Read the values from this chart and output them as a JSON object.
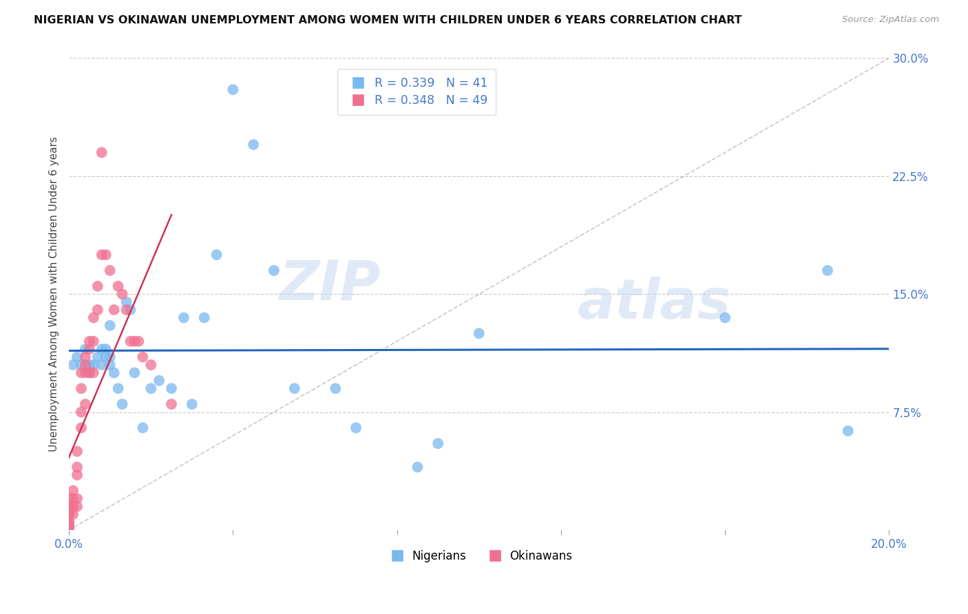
{
  "title": "NIGERIAN VS OKINAWAN UNEMPLOYMENT AMONG WOMEN WITH CHILDREN UNDER 6 YEARS CORRELATION CHART",
  "source": "Source: ZipAtlas.com",
  "ylabel": "Unemployment Among Women with Children Under 6 years",
  "xlim": [
    0.0,
    0.2
  ],
  "ylim": [
    0.0,
    0.3
  ],
  "nigerian_R": 0.339,
  "nigerian_N": 41,
  "okinawan_R": 0.348,
  "okinawan_N": 49,
  "nigerian_color": "#7ab8f0",
  "okinawan_color": "#f07090",
  "nigerian_line_color": "#2266bb",
  "okinawan_line_color": "#cc3355",
  "identity_line_color": "#bbbbbb",
  "watermark_zip": "ZIP",
  "watermark_atlas": "atlas",
  "nigerian_x": [
    0.001,
    0.002,
    0.003,
    0.004,
    0.005,
    0.005,
    0.006,
    0.007,
    0.008,
    0.008,
    0.009,
    0.009,
    0.01,
    0.01,
    0.01,
    0.011,
    0.012,
    0.013,
    0.014,
    0.015,
    0.016,
    0.018,
    0.02,
    0.022,
    0.025,
    0.028,
    0.03,
    0.033,
    0.036,
    0.04,
    0.045,
    0.05,
    0.055,
    0.065,
    0.07,
    0.085,
    0.09,
    0.1,
    0.16,
    0.185,
    0.19
  ],
  "nigerian_y": [
    0.105,
    0.11,
    0.105,
    0.115,
    0.1,
    0.105,
    0.105,
    0.11,
    0.105,
    0.115,
    0.115,
    0.11,
    0.11,
    0.13,
    0.105,
    0.1,
    0.09,
    0.08,
    0.145,
    0.14,
    0.1,
    0.065,
    0.09,
    0.095,
    0.09,
    0.135,
    0.08,
    0.135,
    0.175,
    0.28,
    0.245,
    0.165,
    0.09,
    0.09,
    0.065,
    0.04,
    0.055,
    0.125,
    0.135,
    0.165,
    0.063
  ],
  "okinawan_x": [
    0.0,
    0.0,
    0.0,
    0.0,
    0.0,
    0.0,
    0.0,
    0.0,
    0.0,
    0.0,
    0.001,
    0.001,
    0.001,
    0.001,
    0.002,
    0.002,
    0.002,
    0.002,
    0.002,
    0.003,
    0.003,
    0.003,
    0.003,
    0.004,
    0.004,
    0.004,
    0.004,
    0.005,
    0.005,
    0.005,
    0.006,
    0.006,
    0.006,
    0.007,
    0.007,
    0.008,
    0.008,
    0.009,
    0.01,
    0.011,
    0.012,
    0.013,
    0.014,
    0.015,
    0.016,
    0.017,
    0.018,
    0.02,
    0.025
  ],
  "okinawan_y": [
    0.02,
    0.015,
    0.015,
    0.01,
    0.01,
    0.005,
    0.005,
    0.003,
    0.002,
    0.001,
    0.025,
    0.02,
    0.015,
    0.01,
    0.05,
    0.04,
    0.035,
    0.02,
    0.015,
    0.1,
    0.09,
    0.075,
    0.065,
    0.11,
    0.105,
    0.1,
    0.08,
    0.12,
    0.115,
    0.1,
    0.135,
    0.12,
    0.1,
    0.155,
    0.14,
    0.24,
    0.175,
    0.175,
    0.165,
    0.14,
    0.155,
    0.15,
    0.14,
    0.12,
    0.12,
    0.12,
    0.11,
    0.105,
    0.08
  ]
}
